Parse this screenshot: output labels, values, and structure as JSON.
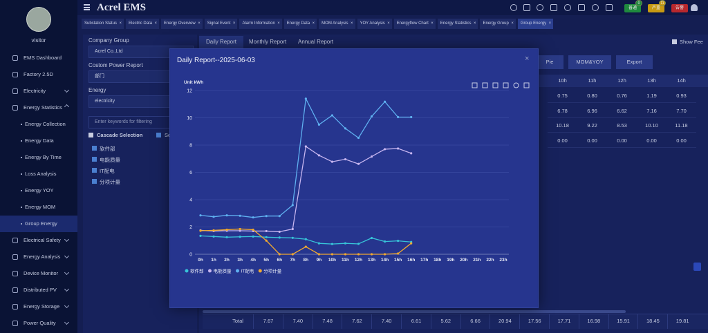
{
  "header": {
    "brand": "Acrel EMS",
    "badges": [
      {
        "label": "普通",
        "count": "0",
        "color": "#1f8a3e"
      },
      {
        "label": "严重",
        "count": "11",
        "color": "#c89a12"
      },
      {
        "label": "告警",
        "color": "#b8282d"
      }
    ]
  },
  "sidebar": {
    "user": "visitor",
    "menu": [
      {
        "label": "EMS Dashboard"
      },
      {
        "label": "Factory 2.5D"
      },
      {
        "label": "Electricity"
      },
      {
        "label": "Energy Statistics",
        "children": [
          "Energy Collection",
          "Energy Data",
          "Energy By Time",
          "Loss Analysis",
          "Energy YOY",
          "Energy MOM",
          "Group Energy"
        ]
      },
      {
        "label": "Electrical Safety"
      },
      {
        "label": "Energy Analysis"
      },
      {
        "label": "Device Monitor"
      },
      {
        "label": "Distributed PV"
      },
      {
        "label": "Energy Storage"
      },
      {
        "label": "Power Quality"
      }
    ]
  },
  "tabs": [
    "Substation Status",
    "Electric Data",
    "Energy Overview",
    "Signal Event",
    "Alarm Information",
    "Energy Data",
    "MOM Analysis",
    "YOY Analysis",
    "Energyflow Chart",
    "Energy Statistics",
    "Energy Group",
    "Group Energy"
  ],
  "filters": {
    "company_label": "Company Group",
    "company": "Acrel Co.,Ltd",
    "report_label": "Costom Power Report",
    "report": "部门",
    "energy_label": "Energy",
    "energy": "electricity",
    "search_placeholder": "Enter keywords for filtering",
    "cascade": "Cascade Selection",
    "select_all": "Se",
    "items": [
      "软件部",
      "电能质量",
      "IT配电",
      "分项计量"
    ]
  },
  "report_tabs": [
    "Daily Report",
    "Monthly Report",
    "Annual Report"
  ],
  "show_fee": "Show Fee",
  "buttons": [
    "Pie",
    "MOM&YOY",
    "Export"
  ],
  "table": {
    "columns": [
      "10h",
      "11h",
      "12h",
      "13h",
      "14h"
    ],
    "rows": [
      [
        "0.75",
        "0.80",
        "0.76",
        "1.19",
        "0.93"
      ],
      [
        "6.78",
        "6.96",
        "6.62",
        "7.16",
        "7.70"
      ],
      [
        "10.18",
        "9.22",
        "8.53",
        "10.10",
        "11.18"
      ],
      [
        "0.00",
        "0.00",
        "0.00",
        "0.00",
        "0.00"
      ]
    ],
    "total_label": "Total",
    "totals": [
      "7.67",
      "7.40",
      "7.48",
      "7.62",
      "7.40",
      "6.61",
      "5.62",
      "6.66",
      "20.94",
      "17.56",
      "17.71",
      "16.98",
      "15.91",
      "18.45",
      "19.81"
    ]
  },
  "modal": {
    "title": "Daily Report--2025-06-03"
  },
  "chart_data": {
    "type": "line",
    "unit": "Unit kWh",
    "categories": [
      "0h",
      "1h",
      "2h",
      "3h",
      "4h",
      "5h",
      "6h",
      "7h",
      "8h",
      "9h",
      "10h",
      "11h",
      "12h",
      "13h",
      "14h",
      "15h",
      "16h",
      "17h",
      "18h",
      "19h",
      "20h",
      "21h",
      "22h",
      "23h"
    ],
    "series": [
      {
        "name": "软件部",
        "color": "#37c3d8",
        "values": [
          1.35,
          1.3,
          1.25,
          1.28,
          1.3,
          1.25,
          1.22,
          1.2,
          1.1,
          0.8,
          0.75,
          0.8,
          0.76,
          1.19,
          0.93,
          0.98,
          0.9,
          null,
          null,
          null,
          null,
          null,
          null,
          null
        ]
      },
      {
        "name": "电能质量",
        "color": "#c7b6f0",
        "values": [
          1.75,
          1.7,
          1.72,
          1.72,
          1.7,
          1.7,
          1.65,
          1.85,
          7.9,
          7.25,
          6.78,
          6.96,
          6.62,
          7.16,
          7.7,
          7.75,
          7.4,
          null,
          null,
          null,
          null,
          null,
          null,
          null
        ]
      },
      {
        "name": "IT配电",
        "color": "#5fb0f0",
        "values": [
          2.85,
          2.75,
          2.85,
          2.82,
          2.7,
          2.8,
          2.8,
          3.6,
          11.4,
          9.5,
          10.18,
          9.22,
          8.53,
          10.1,
          11.18,
          10.05,
          10.05,
          null,
          null,
          null,
          null,
          null,
          null,
          null
        ]
      },
      {
        "name": "分项计量",
        "color": "#f0a830",
        "values": [
          1.72,
          1.75,
          1.8,
          1.85,
          1.8,
          1.0,
          0,
          0,
          0.55,
          0,
          0,
          0,
          0,
          0,
          0,
          0.05,
          0.8,
          null,
          null,
          null,
          null,
          null,
          null,
          null
        ]
      }
    ],
    "ylim": [
      0,
      12
    ],
    "yticks": [
      0,
      2,
      4,
      6,
      8,
      10,
      12
    ],
    "grid": true
  }
}
